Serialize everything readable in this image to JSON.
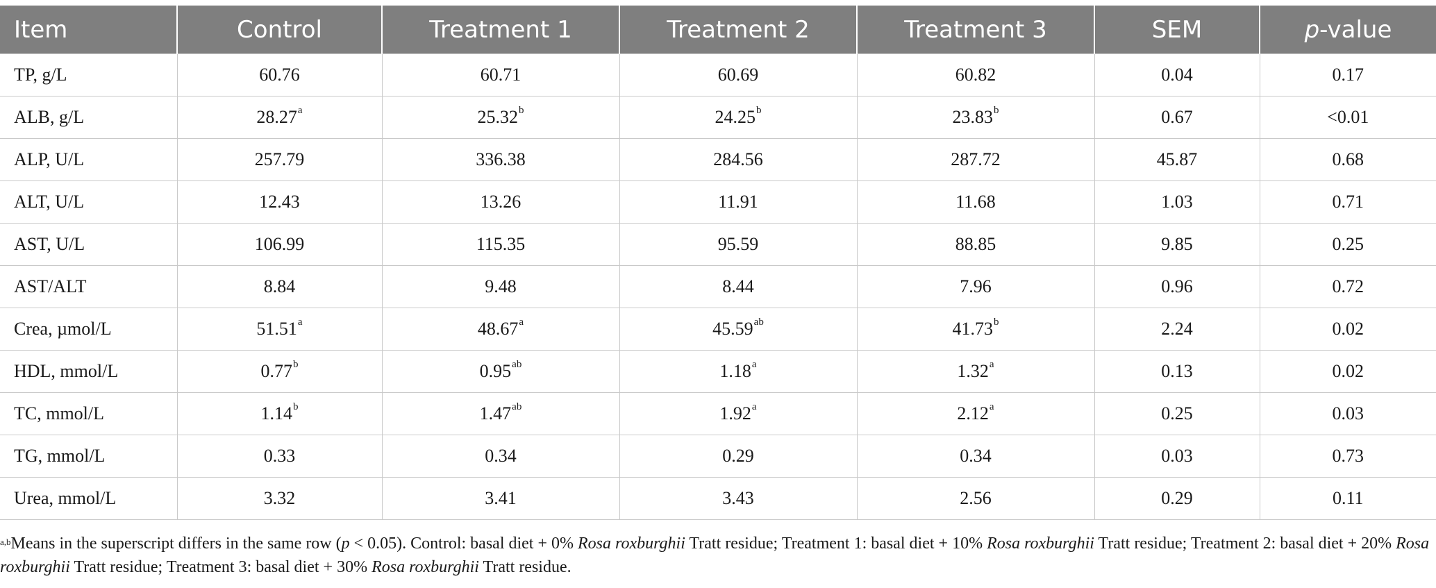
{
  "table": {
    "headers": [
      "Item",
      "Control",
      "Treatment 1",
      "Treatment 2",
      "Treatment 3",
      "SEM",
      "p-value"
    ],
    "rows": [
      {
        "item": "TP, g/L",
        "control": "60.76",
        "t1": "60.71",
        "t2": "60.69",
        "t3": "60.82",
        "sem": "0.04",
        "p": "0.17"
      },
      {
        "item": "ALB, g/L",
        "control": "28.27",
        "control_sup": "a",
        "t1": "25.32",
        "t1_sup": "b",
        "t2": "24.25",
        "t2_sup": "b",
        "t3": "23.83",
        "t3_sup": "b",
        "sem": "0.67",
        "p": "<0.01"
      },
      {
        "item": "ALP, U/L",
        "control": "257.79",
        "t1": "336.38",
        "t2": "284.56",
        "t3": "287.72",
        "sem": "45.87",
        "p": "0.68"
      },
      {
        "item": "ALT, U/L",
        "control": "12.43",
        "t1": "13.26",
        "t2": "11.91",
        "t3": "11.68",
        "sem": "1.03",
        "p": "0.71"
      },
      {
        "item": "AST, U/L",
        "control": "106.99",
        "t1": "115.35",
        "t2": "95.59",
        "t3": "88.85",
        "sem": "9.85",
        "p": "0.25"
      },
      {
        "item": "AST/ALT",
        "control": "8.84",
        "t1": "9.48",
        "t2": "8.44",
        "t3": "7.96",
        "sem": "0.96",
        "p": "0.72"
      },
      {
        "item": "Crea, µmol/L",
        "control": "51.51",
        "control_sup": "a",
        "t1": "48.67",
        "t1_sup": "a",
        "t2": "45.59",
        "t2_sup": "ab",
        "t3": "41.73",
        "t3_sup": "b",
        "sem": "2.24",
        "p": "0.02"
      },
      {
        "item": "HDL, mmol/L",
        "control": "0.77",
        "control_sup": "b",
        "t1": "0.95",
        "t1_sup": "ab",
        "t2": "1.18",
        "t2_sup": "a",
        "t3": "1.32",
        "t3_sup": "a",
        "sem": "0.13",
        "p": "0.02"
      },
      {
        "item": "TC, mmol/L",
        "control": "1.14",
        "control_sup": "b",
        "t1": "1.47",
        "t1_sup": "ab",
        "t2": "1.92",
        "t2_sup": "a",
        "t3": "2.12",
        "t3_sup": "a",
        "sem": "0.25",
        "p": "0.03"
      },
      {
        "item": "TG, mmol/L",
        "control": "0.33",
        "t1": "0.34",
        "t2": "0.29",
        "t3": "0.34",
        "sem": "0.03",
        "p": "0.73"
      },
      {
        "item": "Urea, mmol/L",
        "control": "3.32",
        "t1": "3.41",
        "t2": "3.43",
        "t3": "2.56",
        "sem": "0.29",
        "p": "0.11"
      }
    ]
  },
  "footnote": {
    "sup": "a,b",
    "text_1": "Means in the superscript differs in the same row (",
    "text_1_p": "p",
    "text_1_b": " < 0.05). Control: basal diet + 0% ",
    "species": "Rosa roxburghii",
    "seg_1": " Tratt residue; Treatment 1: basal diet + 10% ",
    "seg_2": " Tratt residue; Treatment 2: basal diet + 20% ",
    "seg_3": " Tratt residue; Treatment 3: basal diet + 30% ",
    "seg_4": " Tratt residue."
  },
  "colors": {
    "header_bg": "#7f7f7f",
    "header_text": "#ffffff",
    "grid": "#c9c9c9",
    "text": "#1a1a1a"
  }
}
